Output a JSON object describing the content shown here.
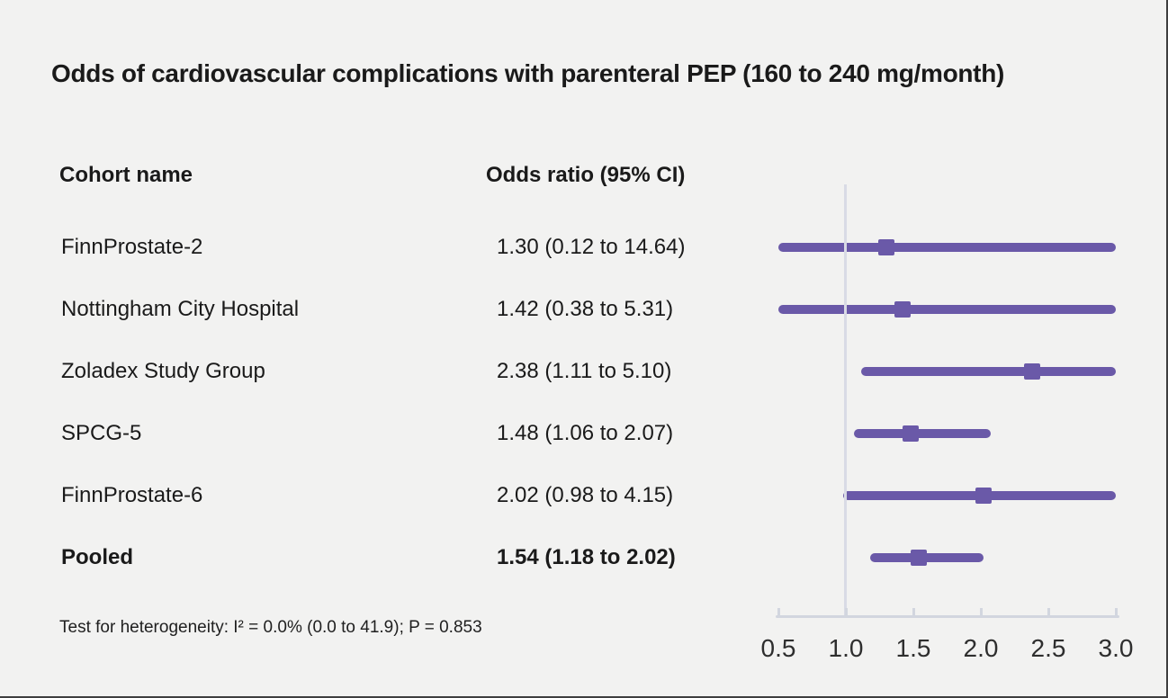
{
  "page": {
    "colors": {
      "background": "#f2f2f1",
      "text": "#1a1a1a",
      "accent": "#6a59a8",
      "axis": "#d2d6df",
      "reference_line": "#d9dbe5",
      "border": "#3f3f3f"
    }
  },
  "chart_data": {
    "type": "forest",
    "title": "Odds of cardiovascular complications with parenteral PEP (160 to 240 mg/month)",
    "columns": {
      "cohort": "Cohort name",
      "odds_ratio": "Odds ratio (95% CI)"
    },
    "x_axis": {
      "range": [
        0.5,
        3.0
      ],
      "ticks": [
        0.5,
        1.0,
        1.5,
        2.0,
        2.5,
        3.0
      ],
      "tick_labels": [
        "0.5",
        "1.0",
        "1.5",
        "2.0",
        "2.5",
        "3.0"
      ],
      "reference_line": 1.0,
      "grid": false
    },
    "rows": [
      {
        "label": "FinnProstate-2",
        "value_text": "1.30 (0.12 to 14.64)",
        "or": 1.3,
        "ci_low": 0.12,
        "ci_high": 14.64,
        "bold": false
      },
      {
        "label": "Nottingham City Hospital",
        "value_text": "1.42 (0.38 to 5.31)",
        "or": 1.42,
        "ci_low": 0.38,
        "ci_high": 5.31,
        "bold": false
      },
      {
        "label": "Zoladex Study Group",
        "value_text": "2.38 (1.11 to 5.10)",
        "or": 2.38,
        "ci_low": 1.11,
        "ci_high": 5.1,
        "bold": false
      },
      {
        "label": "SPCG-5",
        "value_text": "1.48 (1.06 to 2.07)",
        "or": 1.48,
        "ci_low": 1.06,
        "ci_high": 2.07,
        "bold": false
      },
      {
        "label": "FinnProstate-6",
        "value_text": "2.02 (0.98 to 4.15)",
        "or": 2.02,
        "ci_low": 0.98,
        "ci_high": 4.15,
        "bold": false
      },
      {
        "label": "Pooled",
        "value_text": "1.54 (1.18 to 2.02)",
        "or": 1.54,
        "ci_low": 1.18,
        "ci_high": 2.02,
        "bold": true
      }
    ],
    "heterogeneity_note": "Test for heterogeneity: I² = 0.0% (0.0 to 41.9); P = 0.853"
  }
}
